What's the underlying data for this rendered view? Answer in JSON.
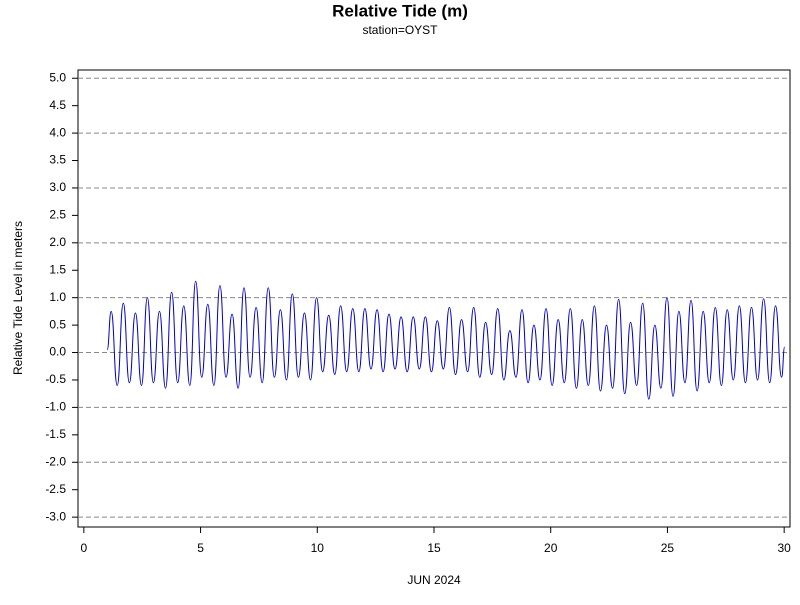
{
  "chart_data": {
    "type": "line",
    "title": "Relative Tide (m)",
    "subtitle": "station=OYST",
    "x_label": "JUN 2024",
    "y_label": "Relative Tide Level in meters",
    "xlim": [
      -0.25,
      30.25
    ],
    "ylim": [
      -3.18,
      5.15
    ],
    "xticks": [
      0,
      5,
      10,
      15,
      20,
      25,
      30
    ],
    "yticks": [
      {
        "value": 5,
        "label": "5.0"
      },
      {
        "value": 4.5,
        "label": "4.5"
      },
      {
        "value": 4,
        "label": "4.0"
      },
      {
        "value": 3.5,
        "label": "3.5"
      },
      {
        "value": 3,
        "label": "3.0"
      },
      {
        "value": 2.5,
        "label": "2.5"
      },
      {
        "value": 2,
        "label": "2.0"
      },
      {
        "value": 1.5,
        "label": "1.5"
      },
      {
        "value": 1,
        "label": "1.0"
      },
      {
        "value": 0.5,
        "label": "0.5"
      },
      {
        "value": 0,
        "label": "0.0"
      },
      {
        "value": -0.5,
        "label": "-0.5"
      },
      {
        "value": -1,
        "label": "-1.0"
      },
      {
        "value": -1.5,
        "label": "-1.5"
      },
      {
        "value": -2,
        "label": "-2.0"
      },
      {
        "value": -2.5,
        "label": "-2.5"
      },
      {
        "value": -3,
        "label": "-3.0"
      }
    ],
    "grid_lines": [
      5,
      4,
      3,
      2,
      1,
      0,
      -1,
      -2,
      -3
    ],
    "grid": true,
    "color": "#0000cc",
    "x": [
      1.0,
      1.17,
      1.43,
      1.69,
      1.95,
      2.21,
      2.47,
      2.72,
      2.98,
      3.24,
      3.5,
      3.76,
      4.02,
      4.28,
      4.54,
      4.79,
      5.05,
      5.31,
      5.57,
      5.83,
      6.09,
      6.35,
      6.61,
      6.86,
      7.12,
      7.38,
      7.64,
      7.9,
      8.16,
      8.42,
      8.68,
      8.93,
      9.19,
      9.45,
      9.71,
      9.97,
      10.23,
      10.49,
      10.75,
      11.0,
      11.26,
      11.52,
      11.78,
      12.04,
      12.3,
      12.56,
      12.82,
      13.07,
      13.33,
      13.59,
      13.85,
      14.11,
      14.37,
      14.63,
      14.89,
      15.14,
      15.4,
      15.66,
      15.92,
      16.18,
      16.44,
      16.7,
      16.96,
      17.21,
      17.47,
      17.73,
      17.99,
      18.25,
      18.51,
      18.77,
      19.03,
      19.28,
      19.54,
      19.8,
      20.06,
      20.32,
      20.58,
      20.84,
      21.1,
      21.35,
      21.61,
      21.87,
      22.13,
      22.39,
      22.65,
      22.91,
      23.17,
      23.42,
      23.68,
      23.94,
      24.2,
      24.46,
      24.72,
      24.98,
      25.24,
      25.49,
      25.75,
      26.01,
      26.27,
      26.53,
      26.79,
      27.05,
      27.31,
      27.56,
      27.82,
      28.08,
      28.34,
      28.6,
      28.86,
      29.12,
      29.38,
      29.63,
      29.89,
      30.02
    ],
    "values": [
      0.05,
      0.75,
      -0.6,
      0.9,
      -0.55,
      0.72,
      -0.6,
      1.0,
      -0.55,
      0.75,
      -0.65,
      1.1,
      -0.55,
      0.85,
      -0.6,
      1.3,
      -0.45,
      0.88,
      -0.6,
      1.22,
      -0.45,
      0.7,
      -0.65,
      1.18,
      -0.45,
      0.82,
      -0.55,
      1.18,
      -0.45,
      0.78,
      -0.5,
      1.07,
      -0.45,
      0.72,
      -0.5,
      1.0,
      -0.35,
      0.68,
      -0.4,
      0.85,
      -0.35,
      0.8,
      -0.35,
      0.8,
      -0.3,
      0.78,
      -0.35,
      0.7,
      -0.3,
      0.65,
      -0.35,
      0.65,
      -0.3,
      0.65,
      -0.35,
      0.58,
      -0.3,
      0.82,
      -0.4,
      0.6,
      -0.35,
      0.82,
      -0.45,
      0.55,
      -0.4,
      0.8,
      -0.5,
      0.4,
      -0.45,
      0.78,
      -0.55,
      0.5,
      -0.5,
      0.8,
      -0.6,
      0.6,
      -0.55,
      0.8,
      -0.65,
      0.6,
      -0.6,
      0.85,
      -0.7,
      0.5,
      -0.65,
      0.97,
      -0.75,
      0.55,
      -0.6,
      0.9,
      -0.85,
      0.5,
      -0.65,
      1.0,
      -0.8,
      0.75,
      -0.55,
      0.95,
      -0.7,
      0.75,
      -0.55,
      0.82,
      -0.6,
      0.78,
      -0.5,
      0.85,
      -0.55,
      0.82,
      -0.5,
      0.98,
      -0.55,
      0.85,
      -0.45,
      0.1
    ]
  }
}
